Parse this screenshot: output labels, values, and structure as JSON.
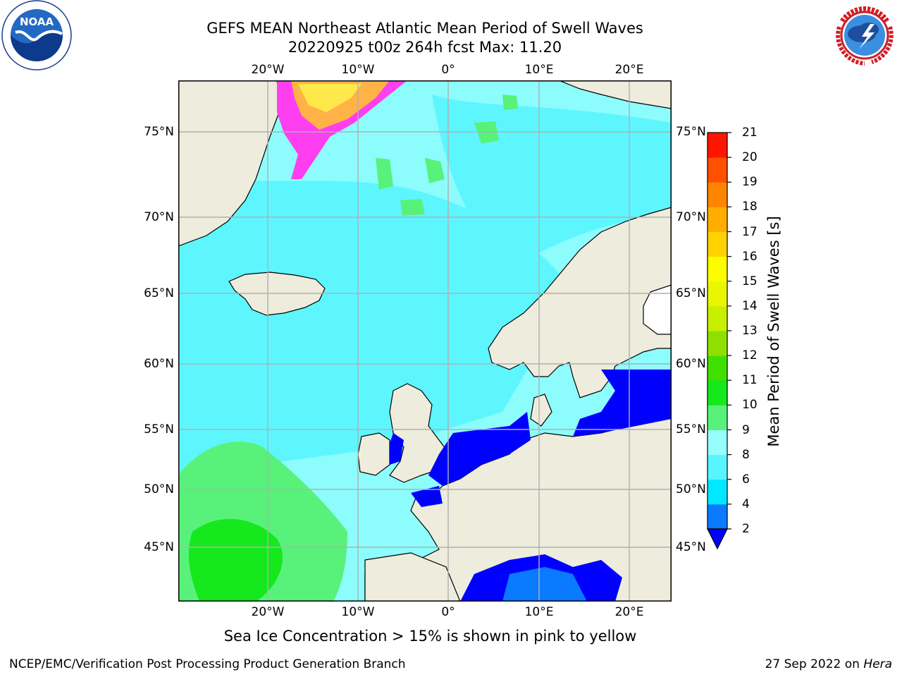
{
  "header": {
    "title_line1": "GEFS MEAN Northeast Atlantic Mean Period of Swell Waves",
    "title_line2": "20220925 t00z 264h fcst   Max: 11.20"
  },
  "logos": {
    "left": {
      "icon": "noaa-logo",
      "text": "NOAA",
      "ring_text": "NATIONAL OCEANIC AND ATMOSPHERIC ADMINISTRATION · U.S. DEPARTMENT OF COMMERCE"
    },
    "right": {
      "icon": "nws-logo",
      "ring_text": "NATIONAL WEATHER SERVICE"
    }
  },
  "map": {
    "lon_labels": [
      "20°W",
      "10°W",
      "0°",
      "10°E",
      "20°E"
    ],
    "lat_labels": [
      "75°N",
      "70°N",
      "65°N",
      "60°N",
      "55°N",
      "50°N",
      "45°N"
    ],
    "colors": {
      "land": "#eeecdc",
      "ocean_main": "#8dfcfc",
      "ocean_light": "#5df6ff",
      "grid": "#b0b0b0"
    }
  },
  "colorbar": {
    "label": "Mean Period of Swell Waves [s]",
    "ticks": [
      "2",
      "4",
      "6",
      "8",
      "9",
      "10",
      "11",
      "12",
      "13",
      "14",
      "15",
      "16",
      "17",
      "18",
      "19",
      "20",
      "21"
    ],
    "colors": [
      "#0a7aff",
      "#00e8ff",
      "#58f5ff",
      "#97fdfd",
      "#58f27a",
      "#16e81e",
      "#3fe000",
      "#8fe000",
      "#c8ef00",
      "#eaf500",
      "#fdfd00",
      "#ffd200",
      "#ffae00",
      "#ff8400",
      "#ff5000",
      "#ff1600"
    ],
    "under_color": "#0000ff"
  },
  "note": "Sea Ice Concentration > 15% is shown in pink to yellow",
  "footer": {
    "left": "NCEP/EMC/Verification Post Processing Product Generation Branch",
    "date": "27 Sep 2022 on ",
    "machine": "Hera"
  }
}
